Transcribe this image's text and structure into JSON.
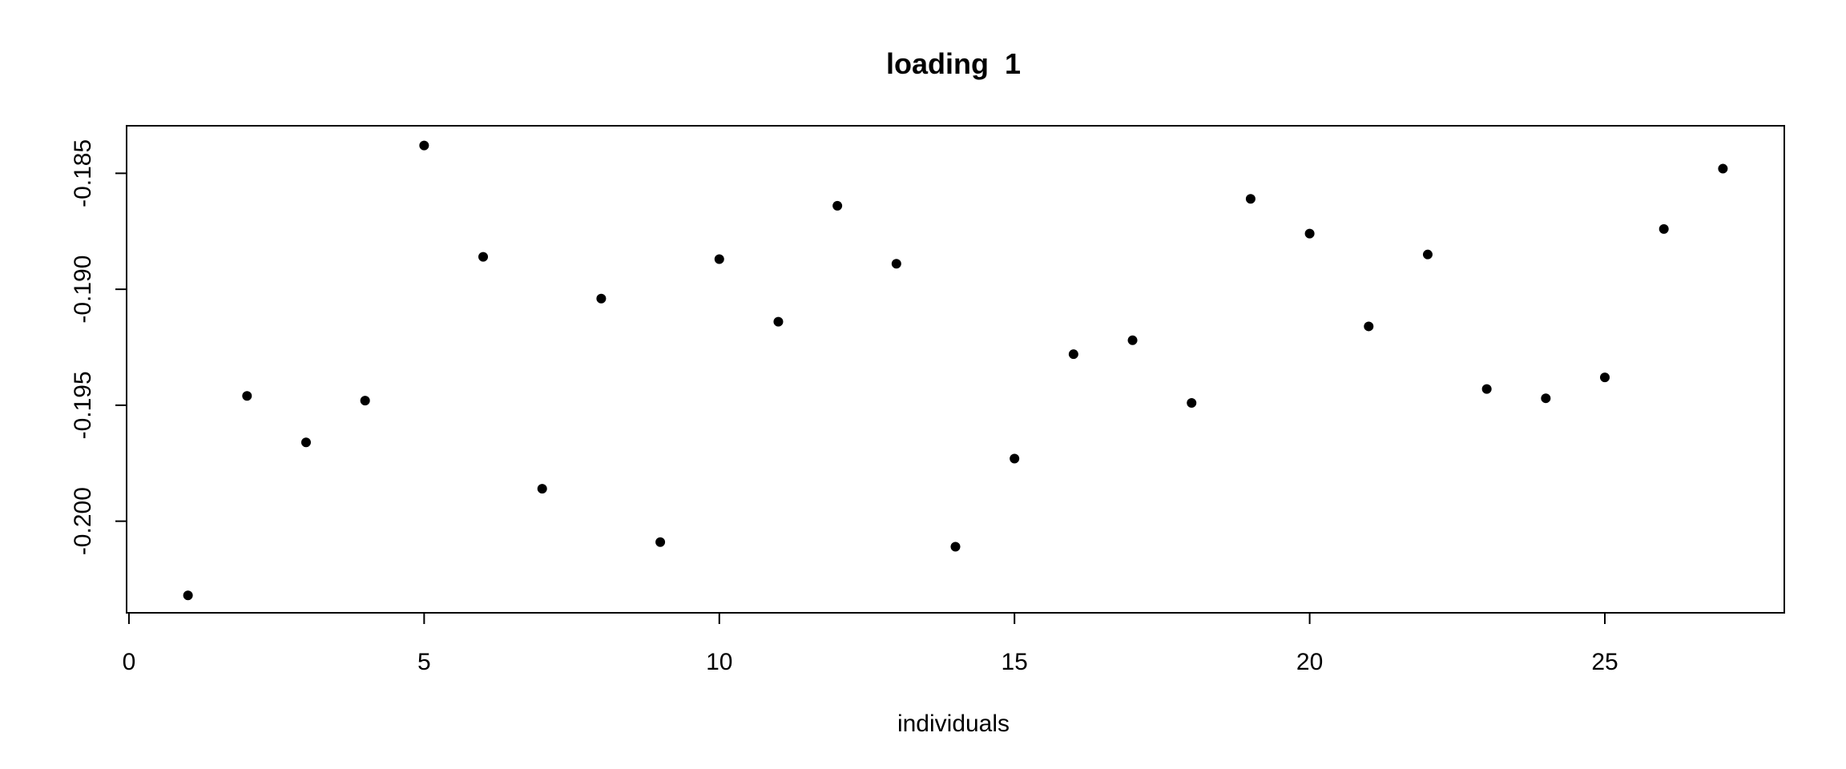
{
  "chart_data": {
    "type": "scatter",
    "title": "loading  1",
    "xlabel": "individuals",
    "ylabel": "",
    "x": [
      1,
      2,
      3,
      4,
      5,
      6,
      7,
      8,
      9,
      10,
      11,
      12,
      13,
      14,
      15,
      16,
      17,
      18,
      19,
      20,
      21,
      22,
      23,
      24,
      25,
      26,
      27
    ],
    "y": [
      -0.2032,
      -0.1946,
      -0.1966,
      -0.1948,
      -0.1838,
      -0.1886,
      -0.1986,
      -0.1904,
      -0.2009,
      -0.1887,
      -0.1914,
      -0.1864,
      -0.1889,
      -0.2011,
      -0.1973,
      -0.1928,
      -0.1922,
      -0.1949,
      -0.1861,
      -0.1876,
      -0.1916,
      -0.1885,
      -0.1943,
      -0.1947,
      -0.1938,
      -0.1874,
      -0.1848
    ],
    "xlim": [
      -0.04,
      28.04
    ],
    "ylim": [
      -0.20395,
      -0.18295
    ],
    "xticks": [
      0,
      5,
      10,
      15,
      20,
      25
    ],
    "xtick_labels": [
      "0",
      "5",
      "10",
      "15",
      "20",
      "25"
    ],
    "yticks": [
      -0.185,
      -0.19,
      -0.195,
      -0.2
    ],
    "ytick_labels": [
      "-0.185",
      "-0.190",
      "-0.195",
      "-0.200"
    ],
    "grid": false,
    "legend": "none",
    "point_color": "#000000"
  }
}
